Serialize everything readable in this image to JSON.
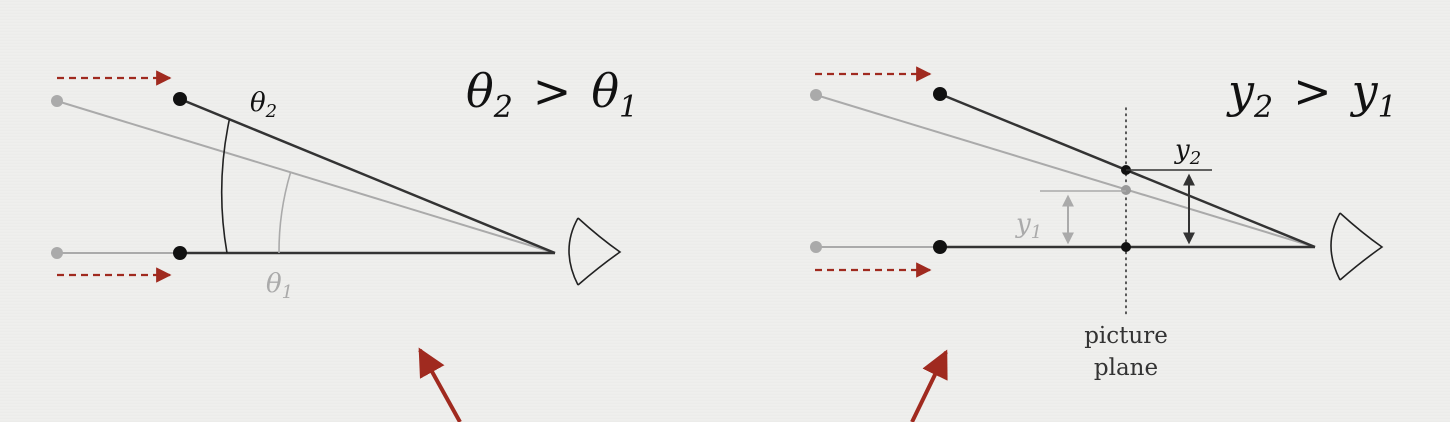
{
  "left_panel": {
    "relation": {
      "a": "θ",
      "a_sub": "2",
      "op": ">",
      "b": "θ",
      "b_sub": "1"
    },
    "angle_label_outer": {
      "symbol": "θ",
      "sub": "2"
    },
    "angle_label_inner": {
      "symbol": "θ",
      "sub": "1"
    }
  },
  "right_panel": {
    "relation": {
      "a": "y",
      "a_sub": "2",
      "op": ">",
      "b": "y",
      "b_sub": "1"
    },
    "height_label_dark": {
      "symbol": "y",
      "sub": "2"
    },
    "height_label_light": {
      "symbol": "y",
      "sub": "1"
    },
    "plane_label_line1": "picture",
    "plane_label_line2": "plane"
  },
  "colors": {
    "dark": "#333333",
    "light": "#aaaaaa",
    "arrow_red": "#a02a1f"
  },
  "icons": [
    "eye-icon",
    "motion-arrow-icon",
    "pointer-arrow-icon"
  ]
}
